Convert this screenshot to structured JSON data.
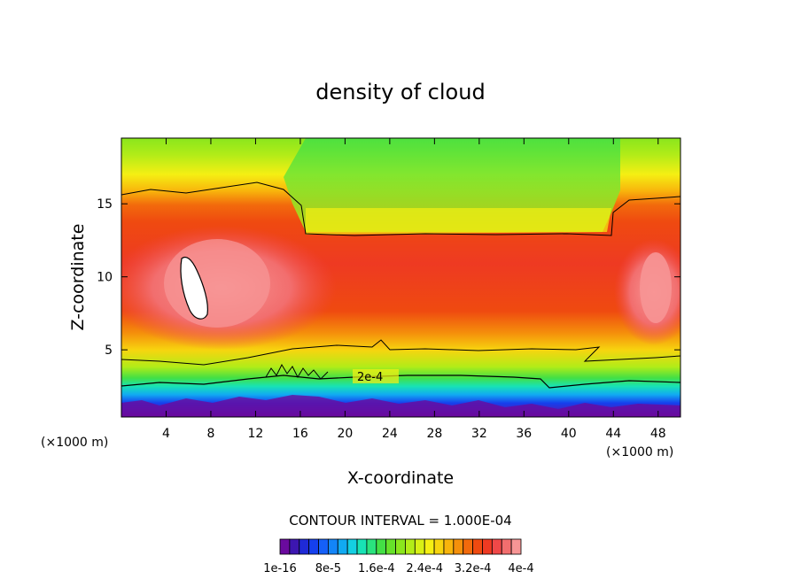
{
  "chart_data": {
    "type": "heatmap",
    "title": "density of cloud",
    "xlabel": "X-coordinate",
    "ylabel": "Z-coordinate",
    "x_unit_left": "(×1000 m)",
    "x_unit_right": "(×1000 m)",
    "xlim": [
      0,
      50
    ],
    "ylim": [
      0.4,
      19.5
    ],
    "x_ticks": [
      4,
      8,
      12,
      16,
      20,
      24,
      28,
      32,
      36,
      40,
      44,
      48
    ],
    "x_tick_labels": [
      "4",
      "8",
      "12",
      "16",
      "20",
      "24",
      "28",
      "32",
      "36",
      "40",
      "44",
      "48"
    ],
    "y_ticks": [
      5,
      10,
      15
    ],
    "y_tick_labels": [
      "5",
      "10",
      "15"
    ],
    "contour_interval_text": "CONTOUR INTERVAL = 1.000E-04",
    "contour_label": "2e-4",
    "colorbar": {
      "labels": [
        "1e-16",
        "8e-5",
        "1.6e-4",
        "2.4e-4",
        "3.2e-4",
        "4e-4"
      ],
      "colors": [
        "#6a0a9e",
        "#3c16b0",
        "#1f2ad6",
        "#1540ee",
        "#1560f8",
        "#1385f8",
        "#11aaf2",
        "#14cfe2",
        "#18e2b5",
        "#2ae37e",
        "#43e045",
        "#66e22a",
        "#8ae61d",
        "#b2ec18",
        "#d8f015",
        "#f5ef13",
        "#f7d40f",
        "#f8b40c",
        "#f5900b",
        "#f26a0c",
        "#ef4a10",
        "#ee3a22",
        "#f04848",
        "#f26e6e",
        "#f79595"
      ]
    }
  }
}
